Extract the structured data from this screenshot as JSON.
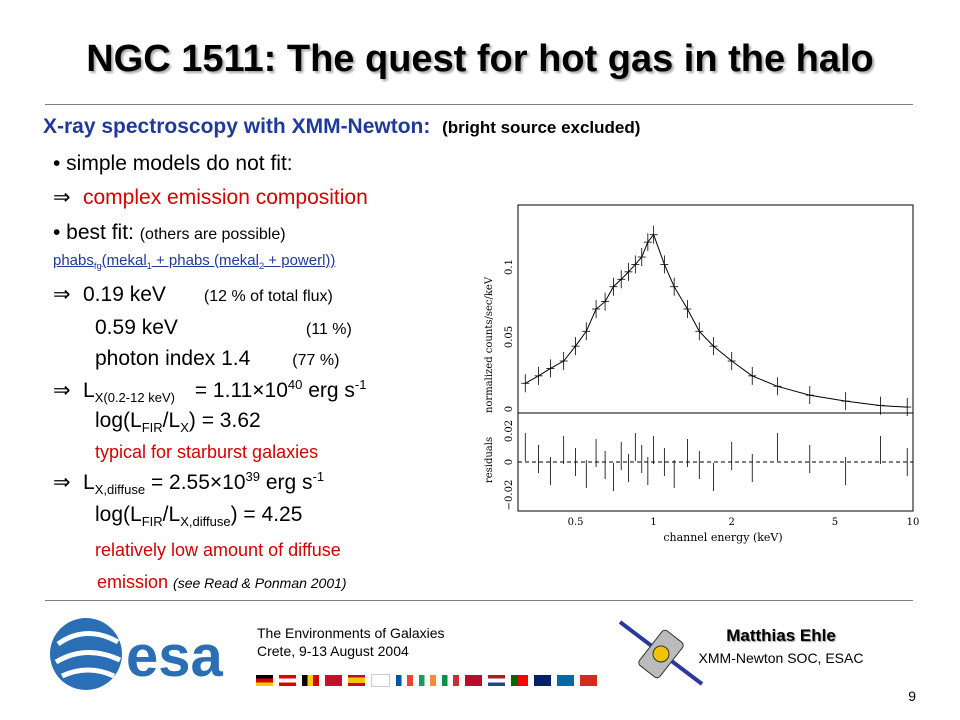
{
  "slide": {
    "title": "NGC 1511: The quest for hot gas in the halo",
    "subtitle": {
      "lead": "X-ray",
      "main": " spectroscopy with XMM-Newton:",
      "note": "(bright source excluded)"
    },
    "lines": {
      "l1": "• simple models do not fit:",
      "l2": "complex emission composition",
      "l3a": "• best fit: ",
      "l3b": "(others are possible)",
      "model_a": "phabs",
      "model_fg": "fg",
      "model_b": "(mekal",
      "model_1": "1",
      "model_c": " + phabs (mekal",
      "model_2": "2",
      "model_d": " + powerl))",
      "kev1": "0.19 keV",
      "kev1_note": "(12 % of total flux)",
      "kev2": "0.59 keV",
      "kev2_note": "(11 %)",
      "photon": "photon index 1.4",
      "photon_note": "(77 %)",
      "lx_a": "L",
      "lx_sub": "X(0.2-12 keV)",
      "lx_b": " = 1.11×10",
      "lx_exp": "40",
      "lx_c": " erg s",
      "lx_exp2": "-1",
      "log1_a": "log(L",
      "log1_sub1": "FIR",
      "log1_b": "/L",
      "log1_sub2": "X",
      "log1_c": ") = 3.62",
      "typical": "typical for starburst galaxies",
      "lxd_a": "L",
      "lxd_sub": "X,diffuse",
      "lxd_b": " =  2.55×10",
      "lxd_exp": "39",
      "lxd_c": " erg s",
      "lxd_exp2": "-1",
      "log2_a": "log(L",
      "log2_sub1": "FIR",
      "log2_b": "/L",
      "log2_sub2": "X,diffuse",
      "log2_c": ") = 4.25",
      "rel": "relatively low amount of diffuse",
      "emission": "emission ",
      "read": "(see Read & Ponman 2001)",
      "arrow": "⇒"
    },
    "plot": {
      "ylabel_top": "normalized counts/sec/keV",
      "ylabel_bottom": "residuals",
      "xlabel": "channel energy (keV)",
      "top_ticks": [
        "0.1",
        "0.05",
        "0"
      ],
      "bottom_ticks": [
        "0.02",
        "0",
        "−0.02"
      ],
      "x_ticks": [
        "0.5",
        "1",
        "2",
        "5",
        "10"
      ]
    },
    "footer": {
      "esa": "esa",
      "conf1": "The Environments of Galaxies",
      "conf2": "Crete, 9-13 August 2004",
      "author": "Matthias Ehle",
      "affil": "XMM-Newton SOC, ESAC",
      "page": "9",
      "colors": {
        "esa_blue": "#2a6fb5",
        "red": "#d40000",
        "blue": "#1f3a9a"
      }
    }
  },
  "chart_data": {
    "type": "scatter",
    "title": "",
    "xlabel": "channel energy (keV)",
    "ylabel": "normalized counts/sec/keV",
    "xscale": "log",
    "xlim": [
      0.3,
      10
    ],
    "ylim": [
      0,
      0.14
    ],
    "series": [
      {
        "x": [
          0.32,
          0.36,
          0.4,
          0.45,
          0.5,
          0.55,
          0.6,
          0.65,
          0.7,
          0.75,
          0.8,
          0.85,
          0.9,
          0.95,
          1.0,
          1.1,
          1.2,
          1.35,
          1.5,
          1.7,
          2.0,
          2.4,
          3.0,
          4.0,
          5.5,
          7.5,
          9.5
        ],
        "values": [
          0.02,
          0.025,
          0.03,
          0.035,
          0.045,
          0.055,
          0.07,
          0.075,
          0.085,
          0.09,
          0.095,
          0.1,
          0.105,
          0.115,
          0.12,
          0.1,
          0.085,
          0.07,
          0.055,
          0.045,
          0.035,
          0.025,
          0.018,
          0.012,
          0.008,
          0.005,
          0.004
        ]
      }
    ]
  }
}
